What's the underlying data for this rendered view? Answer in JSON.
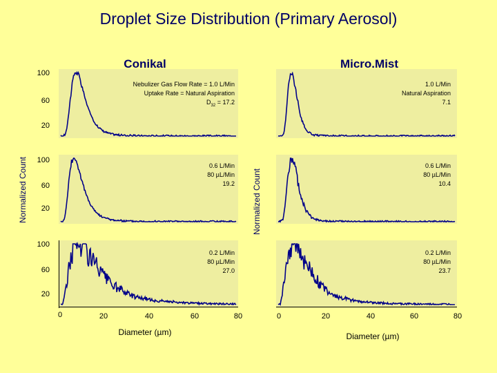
{
  "title": "Droplet  Size Distribution (Primary Aerosol)",
  "columns": [
    {
      "title": "Conikal",
      "xlabel": "Diameter (µm)",
      "ylabel": "Normalized Count",
      "xticks": [
        "0",
        "20",
        "40",
        "60",
        "80"
      ],
      "yticks": [
        "100",
        "60",
        "20"
      ],
      "panels": [
        {
          "line1": "Nebulizer Gas Flow Rate = 1.0 L/Min",
          "line2": "Uptake Rate = Natural Aspiration",
          "line3_prefix": "D",
          "line3_sub": "32",
          "line3_suffix": " = 17.2"
        },
        {
          "line1": "0.6 L/Min",
          "line2": "80 µL/Min",
          "line3": "19.2"
        },
        {
          "line1": "0.2 L/Min",
          "line2": "80 µL/Min",
          "line3": "27.0"
        }
      ]
    },
    {
      "title": "Micro.Mist",
      "xlabel": "Diameter (µm)",
      "ylabel": "Normalized Count",
      "xticks": [
        "0",
        "20",
        "40",
        "60",
        "80"
      ],
      "panels": [
        {
          "line1": "1.0 L/Min",
          "line2": "Natural Aspiration",
          "line3": "7.1"
        },
        {
          "line1": "0.6 L/Min",
          "line2": "80 µL/Min",
          "line3": "10.4"
        },
        {
          "line1": "0.2 L/Min",
          "line2": "80 µL/Min",
          "line3": "23.7"
        }
      ]
    }
  ],
  "chart_data": [
    {
      "type": "line",
      "x_range": [
        0,
        80
      ],
      "y_range": [
        0,
        100
      ],
      "grid": false,
      "peak_x": 7,
      "sauter_diameter": 17.2,
      "width": 9,
      "noise": 0.04,
      "tail": 0.01
    },
    {
      "type": "line",
      "x_range": [
        0,
        80
      ],
      "y_range": [
        0,
        100
      ],
      "grid": false,
      "peak_x": 6,
      "sauter_diameter": 19.2,
      "width": 10,
      "noise": 0.05,
      "tail": 0.015
    },
    {
      "type": "line",
      "x_range": [
        0,
        80
      ],
      "y_range": [
        0,
        100
      ],
      "grid": false,
      "peak_x": 8,
      "sauter_diameter": 27.0,
      "width": 14,
      "noise": 0.25,
      "tail": 0.06
    },
    {
      "type": "line",
      "x_range": [
        0,
        80
      ],
      "y_range": [
        0,
        100
      ],
      "grid": false,
      "peak_x": 6,
      "sauter_diameter": 7.1,
      "width": 7,
      "noise": 0.04,
      "tail": 0.005
    },
    {
      "type": "line",
      "x_range": [
        0,
        80
      ],
      "y_range": [
        0,
        100
      ],
      "grid": false,
      "peak_x": 6,
      "sauter_diameter": 10.4,
      "width": 8,
      "noise": 0.12,
      "tail": 0.01
    },
    {
      "type": "line",
      "x_range": [
        0,
        80
      ],
      "y_range": [
        0,
        100
      ],
      "grid": false,
      "peak_x": 7,
      "sauter_diameter": 23.7,
      "width": 13,
      "noise": 0.25,
      "tail": 0.05
    }
  ]
}
